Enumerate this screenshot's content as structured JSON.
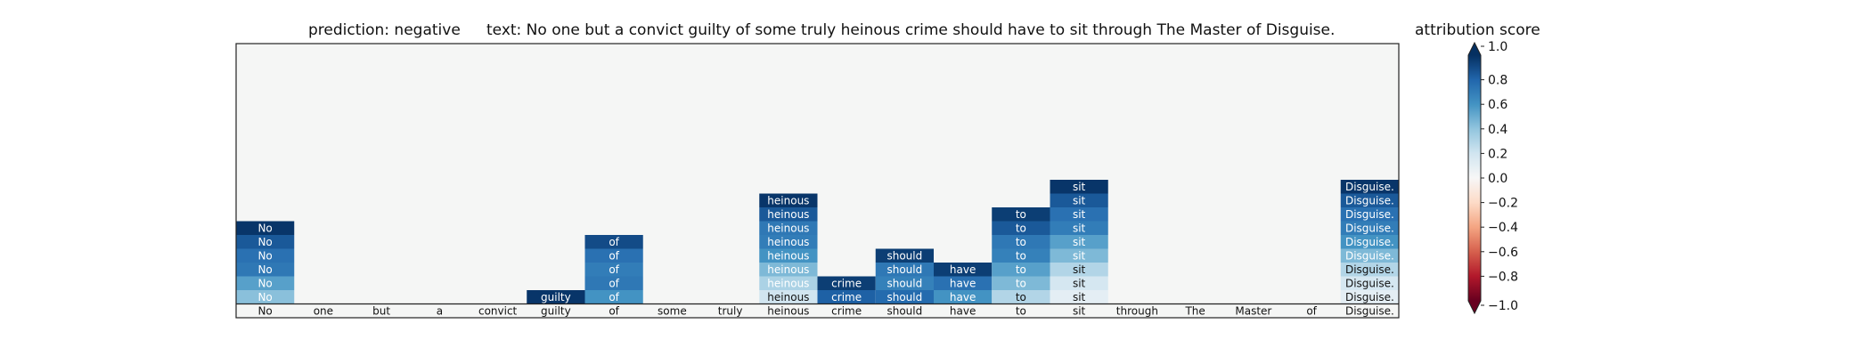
{
  "chart_data": {
    "type": "heatmap",
    "title_prediction": "prediction:  negative",
    "title_text": "text:  No one but a convict guilty of some truly heinous crime should have to sit through The Master of Disguise.",
    "colorbar": {
      "label": "attribution score",
      "range": [
        -1.0,
        1.0
      ],
      "ticks": [
        "1.0",
        "0.8",
        "0.6",
        "0.4",
        "0.2",
        "0.0",
        "−0.2",
        "−0.4",
        "−0.6",
        "−0.8",
        "−1.0"
      ],
      "tick_values": [
        1.0,
        0.8,
        0.6,
        0.4,
        0.2,
        0.0,
        -0.2,
        -0.4,
        -0.6,
        -0.8,
        -1.0
      ],
      "colormap": "RdBu",
      "extend": "both"
    },
    "tokens": [
      "No",
      "one",
      "but",
      "a",
      "convict",
      "guilty",
      "of",
      "some",
      "truly",
      "heinous",
      "crime",
      "should",
      "have",
      "to",
      "sit",
      "through",
      "The",
      "Master",
      "of",
      "Disguise."
    ],
    "stack_levels": 20,
    "columns": [
      {
        "token": "No",
        "values": [
          0.98,
          0.85,
          0.75,
          0.72,
          0.55,
          0.42
        ]
      },
      {
        "token": "one",
        "values": []
      },
      {
        "token": "but",
        "values": []
      },
      {
        "token": "a",
        "values": []
      },
      {
        "token": "convict",
        "values": []
      },
      {
        "token": "guilty",
        "values": [
          0.98
        ]
      },
      {
        "token": "of",
        "values": [
          0.9,
          0.75,
          0.7,
          0.72,
          0.6
        ]
      },
      {
        "token": "some",
        "values": []
      },
      {
        "token": "truly",
        "values": []
      },
      {
        "token": "heinous",
        "values": [
          0.98,
          0.85,
          0.72,
          0.7,
          0.6,
          0.45,
          0.32,
          0.2
        ]
      },
      {
        "token": "crime",
        "values": [
          0.95,
          0.82
        ]
      },
      {
        "token": "should",
        "values": [
          0.95,
          0.72,
          0.68,
          0.78
        ]
      },
      {
        "token": "have",
        "values": [
          0.95,
          0.75,
          0.6
        ]
      },
      {
        "token": "to",
        "values": [
          0.95,
          0.85,
          0.72,
          0.68,
          0.55,
          0.45,
          0.3
        ]
      },
      {
        "token": "sit",
        "values": [
          0.98,
          0.85,
          0.75,
          0.7,
          0.55,
          0.45,
          0.3,
          0.18,
          0.1
        ]
      },
      {
        "token": "through",
        "values": []
      },
      {
        "token": "The",
        "values": []
      },
      {
        "token": "Master",
        "values": []
      },
      {
        "token": "of",
        "values": []
      },
      {
        "token": "Disguise.",
        "values": [
          0.98,
          0.85,
          0.75,
          0.7,
          0.6,
          0.45,
          0.3,
          0.18,
          0.1
        ]
      }
    ]
  }
}
